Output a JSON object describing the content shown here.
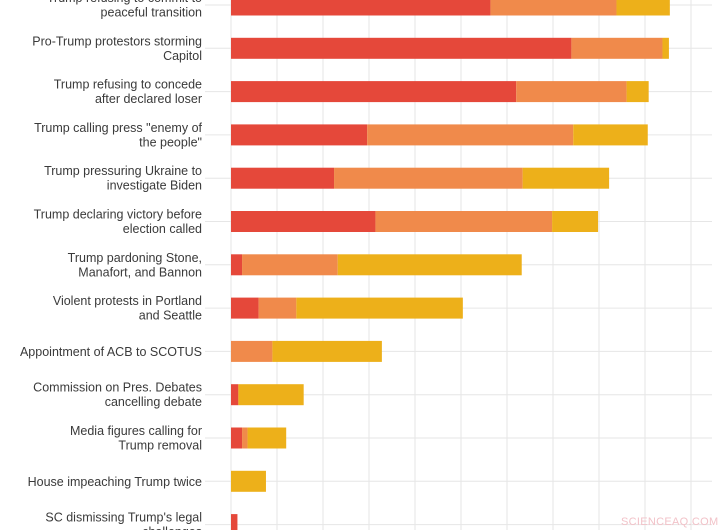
{
  "chart_data": {
    "type": "bar",
    "orientation": "horizontal",
    "stacked": true,
    "grid": true,
    "xlim": [
      0,
      50
    ],
    "categories": [
      [
        "Trump refusing to commit to",
        "peaceful transition"
      ],
      [
        "Pro-Trump protestors storming",
        "Capitol"
      ],
      [
        "Trump refusing to concede",
        "after declared loser"
      ],
      [
        "Trump calling press \"enemy of",
        "the people\""
      ],
      [
        "Trump pressuring Ukraine to",
        "investigate Biden"
      ],
      [
        "Trump declaring victory before",
        "election called"
      ],
      [
        "Trump pardoning Stone,",
        "Manafort, and Bannon"
      ],
      [
        "Violent protests in Portland",
        "and Seattle"
      ],
      [
        "Appointment of ACB to SCOTUS"
      ],
      [
        "Commission on Pres. Debates",
        "cancelling debate"
      ],
      [
        "Media figures calling for",
        "Trump removal"
      ],
      [
        "House impeaching Trump twice"
      ],
      [
        "SC dismissing Trump's legal",
        "challenges"
      ]
    ],
    "series": [
      {
        "color": "#e5483a",
        "values": [
          28.2,
          37.0,
          31.0,
          14.8,
          11.2,
          15.7,
          1.2,
          3.0,
          0,
          0.8,
          1.2,
          0,
          0.7
        ]
      },
      {
        "color": "#f08a4b",
        "values": [
          13.7,
          9.9,
          12.0,
          22.4,
          20.5,
          19.2,
          10.4,
          4.1,
          4.5,
          0,
          0.6,
          0,
          0
        ]
      },
      {
        "color": "#edb01a",
        "values": [
          5.8,
          0.7,
          2.4,
          8.1,
          9.4,
          5.0,
          20.0,
          18.1,
          11.9,
          7.1,
          4.2,
          3.8,
          0
        ]
      }
    ]
  },
  "watermark": "SCIENCEAQ.COM"
}
